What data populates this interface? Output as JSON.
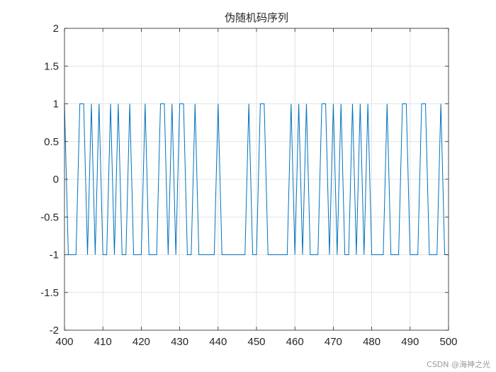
{
  "chart_data": {
    "type": "line",
    "title": "伪随机码序列",
    "xlabel": "",
    "ylabel": "",
    "xlim": [
      400,
      500
    ],
    "ylim": [
      -2,
      2
    ],
    "grid": true,
    "x_ticks": [
      400,
      410,
      420,
      430,
      440,
      450,
      460,
      470,
      480,
      490,
      500
    ],
    "y_ticks": [
      -2,
      -1.5,
      -1,
      -0.5,
      0,
      0.5,
      1,
      1.5,
      2
    ],
    "x_tick_labels": [
      "400",
      "410",
      "420",
      "430",
      "440",
      "450",
      "460",
      "470",
      "480",
      "490",
      "500"
    ],
    "y_tick_labels": [
      "-2",
      "-1.5",
      "-1",
      "-0.5",
      "0",
      "0.5",
      "1",
      "1.5",
      "2"
    ],
    "series": [
      {
        "color": "#0072BD",
        "x": [
          400,
          401,
          402,
          403,
          404,
          405,
          406,
          407,
          408,
          409,
          410,
          411,
          412,
          413,
          414,
          415,
          416,
          417,
          418,
          419,
          420,
          421,
          422,
          423,
          424,
          425,
          426,
          427,
          428,
          429,
          430,
          431,
          432,
          433,
          434,
          435,
          436,
          437,
          438,
          439,
          440,
          441,
          442,
          443,
          444,
          445,
          446,
          447,
          448,
          449,
          450,
          451,
          452,
          453,
          454,
          455,
          456,
          457,
          458,
          459,
          460,
          461,
          462,
          463,
          464,
          465,
          466,
          467,
          468,
          469,
          470,
          471,
          472,
          473,
          474,
          475,
          476,
          477,
          478,
          479,
          480,
          481,
          482,
          483,
          484,
          485,
          486,
          487,
          488,
          489,
          490,
          491,
          492,
          493,
          494,
          495,
          496,
          497,
          498,
          499,
          500
        ],
        "y": [
          1,
          -1,
          -1,
          -1,
          1,
          1,
          -1,
          1,
          -1,
          1,
          -1,
          -1,
          1,
          -1,
          1,
          -1,
          -1,
          1,
          -1,
          -1,
          -1,
          1,
          -1,
          -1,
          -1,
          1,
          1,
          -1,
          1,
          -1,
          1,
          1,
          -1,
          -1,
          1,
          -1,
          -1,
          -1,
          -1,
          -1,
          1,
          -1,
          -1,
          -1,
          -1,
          -1,
          -1,
          -1,
          1,
          -1,
          -1,
          1,
          1,
          -1,
          -1,
          -1,
          -1,
          -1,
          -1,
          1,
          -1,
          1,
          -1,
          1,
          -1,
          -1,
          -1,
          1,
          1,
          -1,
          1,
          -1,
          1,
          -1,
          -1,
          1,
          -1,
          1,
          -1,
          1,
          -1,
          -1,
          -1,
          -1,
          1,
          -1,
          -1,
          -1,
          1,
          1,
          -1,
          -1,
          -1,
          1,
          1,
          -1,
          -1,
          -1,
          1,
          -1,
          -1
        ]
      }
    ]
  },
  "watermark": "CSDN @海神之光"
}
